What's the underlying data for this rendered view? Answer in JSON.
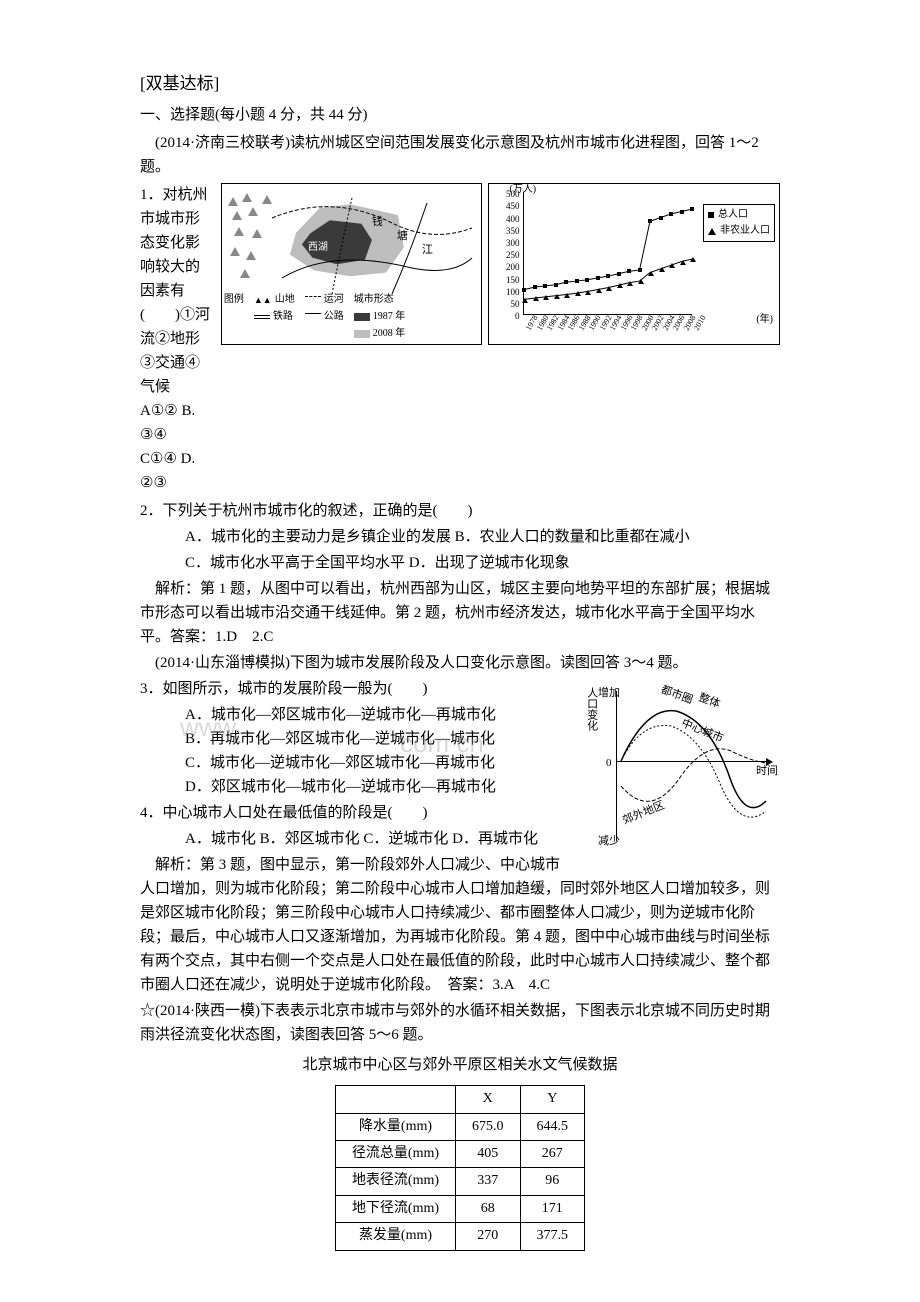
{
  "sectionTitle": "[双基达标]",
  "mcqHeader": "一、选择题(每小题 4 分，共 44 分)",
  "passage1": "　(2014·济南三校联考)读杭州城区空间范围发展变化示意图及杭州市城市化进程图，回答 1～2 题。",
  "q1": {
    "text": "1．对杭州市城市形态变化影响较大的因素有(　　)①河流②地形　③交通④气候",
    "optA": "A①②",
    "optB": "B. ③④",
    "optC": "C①④",
    "optD": "D. ②③"
  },
  "q2": {
    "stem": "2．下列关于杭州市城市化的叙述，正确的是(　　)",
    "A": "A．城市化的主要动力是乡镇企业的发展",
    "B": "B．农业人口的数量和比重都在减小",
    "C": "C．城市化水平高于全国平均水平",
    "D": "D．出现了逆城市化现象"
  },
  "expl1": "　解析：第 1 题，从图中可以看出，杭州西部为山区，城区主要向地势平坦的东部扩展；根据城市形态可以看出城市沿交通干线延伸。第 2 题，杭州市经济发达，城市化水平高于全国平均水平。答案：1.D　2.C",
  "passage2": "　(2014·山东淄博模拟)下图为城市发展阶段及人口变化示意图。读图回答 3～4 题。",
  "q3": {
    "stem": "3．如图所示，城市的发展阶段一般为(　　)",
    "A": "A．城市化—郊区城市化—逆城市化—再城市化",
    "B": "B．再城市化—郊区城市化—逆城市化—城市化",
    "C": "C．城市化—逆城市化—郊区城市化—再城市化",
    "D": "D．郊区城市化—城市化—逆城市化—再城市化"
  },
  "q4": {
    "stem": "4．中心城市人口处在最低值的阶段是(　　)",
    "A": "A．城市化",
    "B": "B．郊区城市化",
    "C": "C．逆城市化",
    "D": "D．再城市化"
  },
  "expl2": "　解析：第 3 题，图中显示，第一阶段郊外人口减少、中心城市人口增加，则为城市化阶段；第二阶段中心城市人口增加趋缓，同时郊外地区人口增加较多，则是郊区城市化阶段；第三阶段中心城市人口持续减少、都市圈整体人口减少，则为逆城市化阶段；最后，中心城市人口又逐渐增加，为再城市化阶段。第 4 题，图中中心城市曲线与时间坐标有两个交点，其中右侧一个交点是人口处在最低值的阶段，此时中心城市人口持续减少、整个都市圈人口还在减少，说明处于逆城市化阶段。　答案：3.A　4.C",
  "passage3": "☆(2014·陕西一模)下表表示北京市城市与郊外的水循环相关数据，下图表示北京城不同历史时期雨洪径流变化状态图，读图表回答 5～6 题。",
  "tableTitle": "北京城市中心区与郊外平原区相关水文气候数据",
  "table": {
    "cols": [
      "",
      "X",
      "Y"
    ],
    "rows": [
      [
        "降水量(mm)",
        "675.0",
        "644.5"
      ],
      [
        "径流总量(mm)",
        "405",
        "267"
      ],
      [
        "地表径流(mm)",
        "337",
        "96"
      ],
      [
        "地下径流(mm)",
        "68",
        "171"
      ],
      [
        "蒸发量(mm)",
        "270",
        "377.5"
      ]
    ]
  },
  "map": {
    "riverLabel1": "钱",
    "riverLabel2": "塘",
    "riverLabel3": "江",
    "lakeLabel": "西湖",
    "legendTitle": "图例",
    "leg_mountain": "山地",
    "leg_rail": "铁路",
    "leg_canal": "运河",
    "leg_road": "公路",
    "leg_shape": "城市形态",
    "leg_1987": "1987 年",
    "leg_2008": "2008 年"
  },
  "chart": {
    "yLabel": "(万人)",
    "yTicks": [
      "0",
      "50",
      "100",
      "150",
      "200",
      "250",
      "300",
      "350",
      "400",
      "450",
      "500"
    ],
    "xTicks": [
      "1978",
      "1980",
      "1982",
      "1984",
      "1986",
      "1988",
      "1990",
      "1992",
      "1994",
      "1996",
      "1998",
      "2000",
      "2002",
      "2004",
      "2006",
      "2008",
      "2010"
    ],
    "xUnit": "(年)",
    "series1": "总人口",
    "series2": "非农业人口",
    "total": [
      100,
      110,
      115,
      120,
      130,
      135,
      140,
      148,
      155,
      165,
      175,
      180,
      380,
      395,
      410,
      420,
      430
    ],
    "nonag": [
      60,
      65,
      70,
      75,
      80,
      85,
      92,
      100,
      108,
      118,
      128,
      135,
      170,
      185,
      200,
      215,
      225
    ]
  },
  "diagram2": {
    "yLabelTop": "增加",
    "yLabelBottom": "减少",
    "yAxis": "人口变化",
    "xLabel": "时间",
    "zero": "0",
    "c1": "都市圈",
    "c2": "整体",
    "c3": "中心城市",
    "c4": "郊外地区"
  },
  "watermark1": "www",
  "watermark2": "com cn"
}
